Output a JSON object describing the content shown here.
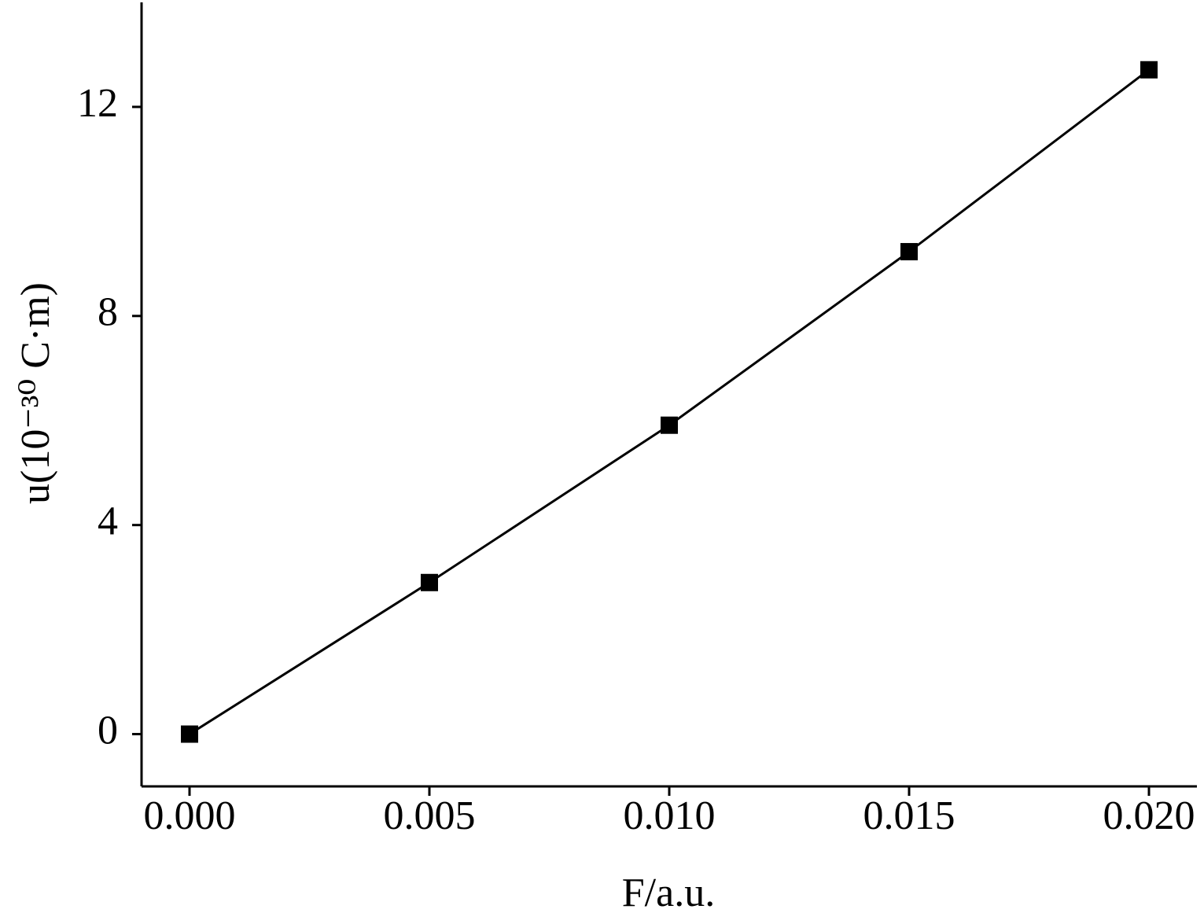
{
  "chart_data": {
    "type": "line",
    "xlabel": "F/a.u.",
    "ylabel": "u(10⁻³⁰ C·m)",
    "x": [
      0,
      0.005,
      0.01,
      0.015,
      0.02
    ],
    "series": [
      {
        "color": "#000000",
        "values": [
          0,
          2.9,
          5.91,
          9.23,
          12.71
        ]
      }
    ],
    "marker": "square",
    "xlim": [
      -0.001,
      0.021
    ],
    "ylim": [
      -1,
      14
    ],
    "xticks": [
      {
        "value": 0,
        "label": "0.000"
      },
      {
        "value": 0.005,
        "label": "0.005"
      },
      {
        "value": 0.01,
        "label": "0.010"
      },
      {
        "value": 0.015,
        "label": "0.015"
      },
      {
        "value": 0.02,
        "label": "0.020"
      }
    ],
    "yticks": [
      0,
      4,
      8,
      12
    ],
    "grid": false
  }
}
